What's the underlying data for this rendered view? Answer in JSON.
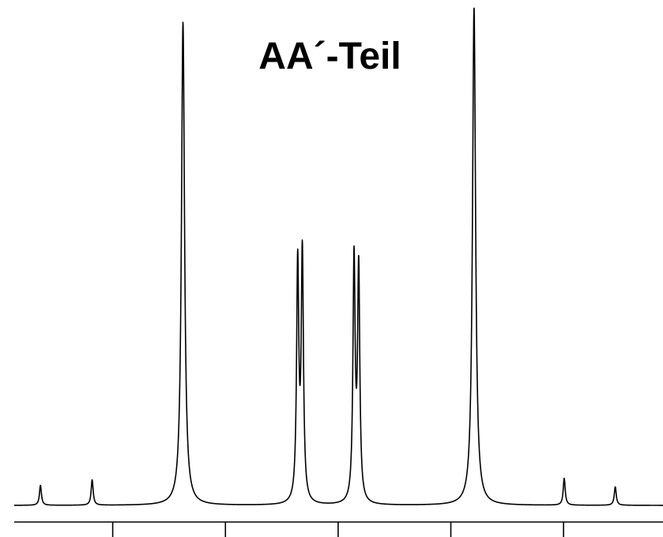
{
  "chart_data": {
    "type": "line",
    "title": "AA´-Teil",
    "xlabel": "",
    "ylabel": "",
    "x_axis": {
      "range": [
        0,
        100
      ],
      "ticks": [
        17,
        34,
        51,
        68,
        85
      ],
      "tick_labels": []
    },
    "y_axis": {
      "range": [
        0,
        100
      ]
    },
    "grid": false,
    "legend": "none",
    "line_color": "#000000",
    "background_color": "#ffffff",
    "series": [
      {
        "peaks": [
          {
            "x": 6.1,
            "height": 4.0,
            "width": 0.18
          },
          {
            "x": 13.9,
            "height": 5.1,
            "width": 0.18
          },
          {
            "x": 27.6,
            "height": 97.0,
            "width": 0.28
          },
          {
            "x": 44.9,
            "height": 47.6,
            "width": 0.2
          },
          {
            "x": 45.6,
            "height": 49.6,
            "width": 0.2
          },
          {
            "x": 53.4,
            "height": 48.5,
            "width": 0.2
          },
          {
            "x": 54.1,
            "height": 46.6,
            "width": 0.2
          },
          {
            "x": 71.5,
            "height": 100.0,
            "width": 0.28
          },
          {
            "x": 85.1,
            "height": 5.4,
            "width": 0.18
          },
          {
            "x": 92.8,
            "height": 3.7,
            "width": 0.18
          }
        ]
      }
    ]
  }
}
